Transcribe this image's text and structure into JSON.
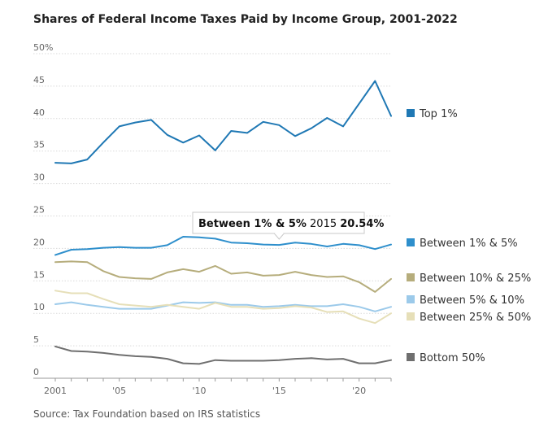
{
  "chart_data": {
    "type": "line",
    "title": "Shares of Federal Income Taxes Paid by Income Group, 2001-2022",
    "source": "Source: Tax Foundation based on IRS statistics",
    "xlabel": "",
    "ylabel": "",
    "x": [
      2001,
      2002,
      2003,
      2004,
      2005,
      2006,
      2007,
      2008,
      2009,
      2010,
      2011,
      2012,
      2013,
      2014,
      2015,
      2016,
      2017,
      2018,
      2019,
      2020,
      2021,
      2022
    ],
    "xlim": [
      2001,
      2022
    ],
    "ylim": [
      0,
      50
    ],
    "grid": true,
    "legend_position": "right",
    "y_ticks": [
      {
        "value": 0,
        "label": "0"
      },
      {
        "value": 5,
        "label": "5"
      },
      {
        "value": 10,
        "label": "10"
      },
      {
        "value": 15,
        "label": "15"
      },
      {
        "value": 20,
        "label": "20"
      },
      {
        "value": 25,
        "label": "25"
      },
      {
        "value": 30,
        "label": "30"
      },
      {
        "value": 35,
        "label": "35"
      },
      {
        "value": 40,
        "label": "40"
      },
      {
        "value": 45,
        "label": "45"
      },
      {
        "value": 50,
        "label": "50%"
      }
    ],
    "x_ticks": [
      {
        "value": 2001,
        "label": "2001"
      },
      {
        "value": 2005,
        "label": "'05"
      },
      {
        "value": 2010,
        "label": "'10"
      },
      {
        "value": 2015,
        "label": "'15"
      },
      {
        "value": 2020,
        "label": "'20"
      }
    ],
    "series": [
      {
        "name": "Top 1%",
        "color": "#1f78b4",
        "values": [
          33.2,
          33.1,
          33.7,
          36.3,
          38.8,
          39.4,
          39.8,
          37.5,
          36.3,
          37.4,
          35.1,
          38.1,
          37.8,
          39.5,
          39.0,
          37.3,
          38.5,
          40.1,
          38.8,
          42.3,
          45.8,
          40.4
        ]
      },
      {
        "name": "Between 1% & 5%",
        "color": "#2e8fcc",
        "values": [
          19.0,
          19.8,
          19.9,
          20.1,
          20.2,
          20.1,
          20.1,
          20.5,
          21.8,
          21.7,
          21.5,
          20.9,
          20.8,
          20.6,
          20.54,
          20.9,
          20.7,
          20.3,
          20.7,
          20.5,
          19.9,
          20.6
        ]
      },
      {
        "name": "Between 10% & 25%",
        "color": "#b6ad7c",
        "values": [
          17.9,
          18.0,
          17.9,
          16.5,
          15.6,
          15.4,
          15.3,
          16.3,
          16.8,
          16.4,
          17.3,
          16.1,
          16.3,
          15.8,
          15.9,
          16.4,
          15.9,
          15.6,
          15.7,
          14.8,
          13.3,
          15.3
        ]
      },
      {
        "name": "Between 5% & 10%",
        "color": "#9ccaea",
        "values": [
          11.4,
          11.7,
          11.3,
          11.0,
          10.7,
          10.7,
          10.7,
          11.2,
          11.7,
          11.6,
          11.7,
          11.3,
          11.3,
          11.0,
          11.1,
          11.3,
          11.1,
          11.1,
          11.4,
          11.0,
          10.3,
          11.0
        ]
      },
      {
        "name": "Between 25% & 50%",
        "color": "#e6dfb8",
        "values": [
          13.5,
          13.1,
          13.1,
          12.2,
          11.4,
          11.2,
          11.0,
          11.3,
          11.0,
          10.7,
          11.6,
          11.0,
          11.0,
          10.7,
          10.8,
          11.1,
          10.9,
          10.2,
          10.3,
          9.2,
          8.5,
          10.0
        ]
      },
      {
        "name": "Bottom 50%",
        "color": "#6f6f6f",
        "values": [
          4.9,
          4.2,
          4.1,
          3.9,
          3.6,
          3.4,
          3.3,
          3.0,
          2.3,
          2.2,
          2.8,
          2.7,
          2.7,
          2.7,
          2.8,
          3.0,
          3.1,
          2.9,
          3.0,
          2.3,
          2.3,
          2.8
        ]
      }
    ],
    "tooltip": {
      "series": "Between 1% & 5%",
      "year": "2015",
      "value": "20.54%"
    }
  }
}
